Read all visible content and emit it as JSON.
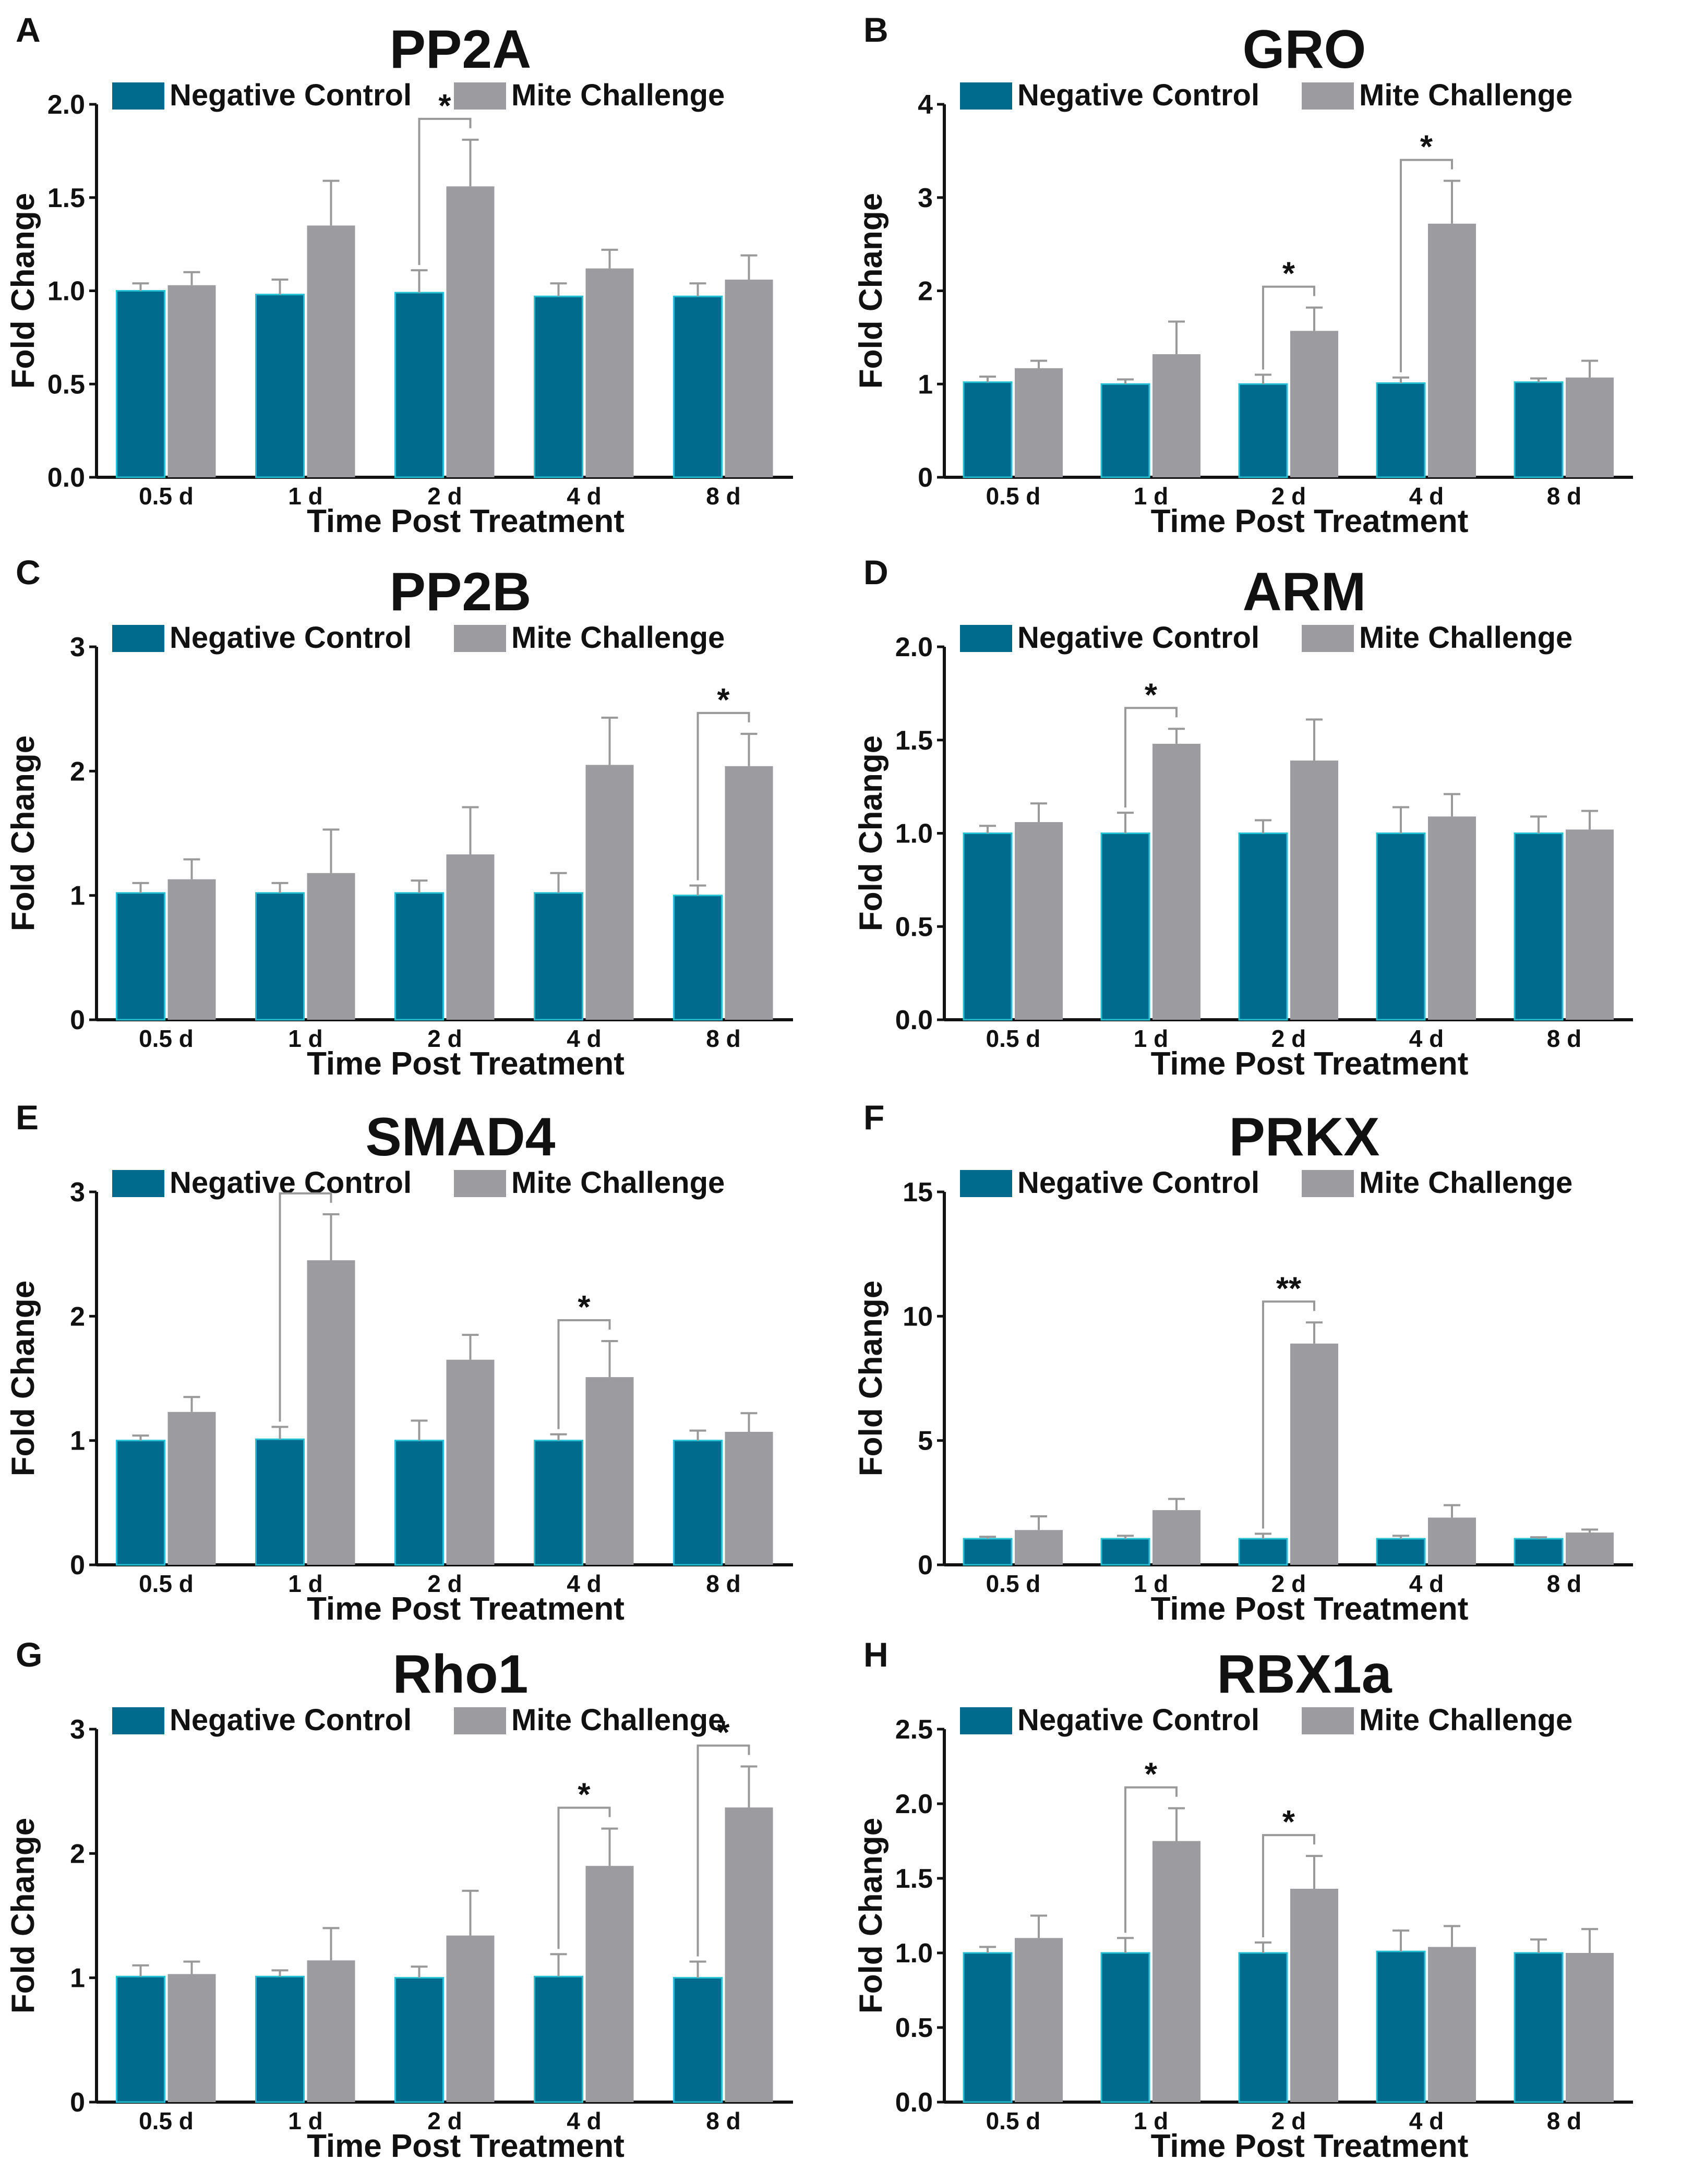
{
  "figure_labels": {
    "legend_control": "Negative Control",
    "legend_mite": "Mite Challenge",
    "xlabel": "Time Post Treatment",
    "ylabel": "Fold Change"
  },
  "colors": {
    "control": "#006b8c",
    "control_edge": "#23c1d3",
    "mite": "#9b9ba0",
    "errorbar": "#999999",
    "text": "#111111"
  },
  "chart_data": [
    {
      "panel": "A",
      "type": "bar",
      "title": "PP2A",
      "categories": [
        "0.5 d",
        "1 d",
        "2 d",
        "4 d",
        "8 d"
      ],
      "xlabel": "Time Post Treatment",
      "ylabel": "Fold Change",
      "ylim": [
        0,
        2.0
      ],
      "yticks": [
        "0.0",
        "0.5",
        "1.0",
        "1.5",
        "2.0"
      ],
      "legend": "top",
      "series": [
        {
          "name": "Negative Control",
          "values": [
            1.0,
            0.98,
            0.99,
            0.97,
            0.97
          ],
          "errors": [
            0.04,
            0.08,
            0.12,
            0.07,
            0.07
          ]
        },
        {
          "name": "Mite Challenge",
          "values": [
            1.03,
            1.35,
            1.56,
            1.12,
            1.06
          ],
          "errors": [
            0.07,
            0.24,
            0.25,
            0.1,
            0.13
          ]
        }
      ],
      "significance": [
        {
          "category": 2,
          "label": "*"
        }
      ]
    },
    {
      "panel": "B",
      "type": "bar",
      "title": "GRO",
      "categories": [
        "0.5 d",
        "1 d",
        "2 d",
        "4 d",
        "8 d"
      ],
      "xlabel": "Time Post Treatment",
      "ylabel": "Fold Change",
      "ylim": [
        0,
        4
      ],
      "yticks": [
        "0",
        "1",
        "2",
        "3",
        "4"
      ],
      "legend": "top",
      "series": [
        {
          "name": "Negative Control",
          "values": [
            1.02,
            1.0,
            1.0,
            1.01,
            1.02
          ],
          "errors": [
            0.06,
            0.05,
            0.1,
            0.06,
            0.04
          ]
        },
        {
          "name": "Mite Challenge",
          "values": [
            1.17,
            1.32,
            1.57,
            2.72,
            1.07
          ],
          "errors": [
            0.08,
            0.35,
            0.25,
            0.46,
            0.18
          ]
        }
      ],
      "significance": [
        {
          "category": 2,
          "label": "*"
        },
        {
          "category": 3,
          "label": "*"
        }
      ]
    },
    {
      "panel": "C",
      "type": "bar",
      "title": "PP2B",
      "categories": [
        "0.5 d",
        "1 d",
        "2 d",
        "4 d",
        "8 d"
      ],
      "xlabel": "Time Post Treatment",
      "ylabel": "Fold Change",
      "ylim": [
        0,
        3
      ],
      "yticks": [
        "0",
        "1",
        "2",
        "3"
      ],
      "legend": "top",
      "series": [
        {
          "name": "Negative Control",
          "values": [
            1.02,
            1.02,
            1.02,
            1.02,
            1.0
          ],
          "errors": [
            0.08,
            0.08,
            0.1,
            0.16,
            0.08
          ]
        },
        {
          "name": "Mite Challenge",
          "values": [
            1.13,
            1.18,
            1.33,
            2.05,
            2.04
          ],
          "errors": [
            0.16,
            0.35,
            0.38,
            0.38,
            0.26
          ]
        }
      ],
      "significance": [
        {
          "category": 4,
          "label": "*"
        }
      ]
    },
    {
      "panel": "D",
      "type": "bar",
      "title": "ARM",
      "categories": [
        "0.5 d",
        "1 d",
        "2 d",
        "4 d",
        "8 d"
      ],
      "xlabel": "Time Post Treatment",
      "ylabel": "Fold Change",
      "ylim": [
        0,
        2.0
      ],
      "yticks": [
        "0.0",
        "0.5",
        "1.0",
        "1.5",
        "2.0"
      ],
      "legend": "top",
      "series": [
        {
          "name": "Negative Control",
          "values": [
            1.0,
            1.0,
            1.0,
            1.0,
            1.0
          ],
          "errors": [
            0.04,
            0.11,
            0.07,
            0.14,
            0.09
          ]
        },
        {
          "name": "Mite Challenge",
          "values": [
            1.06,
            1.48,
            1.39,
            1.09,
            1.02
          ],
          "errors": [
            0.1,
            0.08,
            0.22,
            0.12,
            0.1
          ]
        }
      ],
      "significance": [
        {
          "category": 1,
          "label": "*"
        }
      ]
    },
    {
      "panel": "E",
      "type": "bar",
      "title": "SMAD4",
      "categories": [
        "0.5 d",
        "1 d",
        "2 d",
        "4 d",
        "8 d"
      ],
      "xlabel": "Time Post Treatment",
      "ylabel": "Fold Change",
      "ylim": [
        0,
        3
      ],
      "yticks": [
        "0",
        "1",
        "2",
        "3"
      ],
      "legend": "top",
      "series": [
        {
          "name": "Negative Control",
          "values": [
            1.0,
            1.01,
            1.0,
            1.0,
            1.0
          ],
          "errors": [
            0.04,
            0.1,
            0.16,
            0.05,
            0.08
          ]
        },
        {
          "name": "Mite Challenge",
          "values": [
            1.23,
            2.45,
            1.65,
            1.51,
            1.07
          ],
          "errors": [
            0.12,
            0.37,
            0.2,
            0.29,
            0.15
          ]
        }
      ],
      "significance": [
        {
          "category": 1,
          "label": ""
        },
        {
          "category": 3,
          "label": "*"
        }
      ]
    },
    {
      "panel": "F",
      "type": "bar",
      "title": "PRKX",
      "categories": [
        "0.5 d",
        "1 d",
        "2 d",
        "4 d",
        "8 d"
      ],
      "xlabel": "Time Post Treatment",
      "ylabel": "Fold Change",
      "ylim": [
        0,
        15
      ],
      "yticks": [
        "0",
        "5",
        "10",
        "15"
      ],
      "legend": "top",
      "series": [
        {
          "name": "Negative Control",
          "values": [
            1.05,
            1.05,
            1.05,
            1.05,
            1.05
          ],
          "errors": [
            0.08,
            0.12,
            0.2,
            0.12,
            0.06
          ]
        },
        {
          "name": "Mite Challenge",
          "values": [
            1.4,
            2.2,
            8.9,
            1.9,
            1.3
          ],
          "errors": [
            0.55,
            0.45,
            0.85,
            0.5,
            0.12
          ]
        }
      ],
      "significance": [
        {
          "category": 2,
          "label": "**"
        }
      ]
    },
    {
      "panel": "G",
      "type": "bar",
      "title": "Rho1",
      "categories": [
        "0.5 d",
        "1 d",
        "2 d",
        "4 d",
        "8 d"
      ],
      "xlabel": "Time Post Treatment",
      "ylabel": "Fold Change",
      "ylim": [
        0,
        3
      ],
      "yticks": [
        "0",
        "1",
        "2",
        "3"
      ],
      "legend": "top",
      "series": [
        {
          "name": "Negative Control",
          "values": [
            1.01,
            1.01,
            1.0,
            1.01,
            1.0
          ],
          "errors": [
            0.09,
            0.05,
            0.09,
            0.18,
            0.13
          ]
        },
        {
          "name": "Mite Challenge",
          "values": [
            1.03,
            1.14,
            1.34,
            1.9,
            2.37
          ],
          "errors": [
            0.1,
            0.26,
            0.36,
            0.3,
            0.33
          ]
        }
      ],
      "significance": [
        {
          "category": 3,
          "label": "*"
        },
        {
          "category": 4,
          "label": "*"
        }
      ]
    },
    {
      "panel": "H",
      "type": "bar",
      "title": "RBX1a",
      "categories": [
        "0.5 d",
        "1 d",
        "2 d",
        "4 d",
        "8 d"
      ],
      "xlabel": "Time Post Treatment",
      "ylabel": "Fold Change",
      "ylim": [
        0,
        2.5
      ],
      "yticks": [
        "0.0",
        "0.5",
        "1.0",
        "1.5",
        "2.0",
        "2.5"
      ],
      "legend": "top",
      "series": [
        {
          "name": "Negative Control",
          "values": [
            1.0,
            1.0,
            1.0,
            1.01,
            1.0
          ],
          "errors": [
            0.04,
            0.1,
            0.07,
            0.14,
            0.09
          ]
        },
        {
          "name": "Mite Challenge",
          "values": [
            1.1,
            1.75,
            1.43,
            1.04,
            1.0
          ],
          "errors": [
            0.15,
            0.22,
            0.22,
            0.14,
            0.16
          ]
        }
      ],
      "significance": [
        {
          "category": 1,
          "label": "*"
        },
        {
          "category": 2,
          "label": "*"
        }
      ]
    }
  ]
}
